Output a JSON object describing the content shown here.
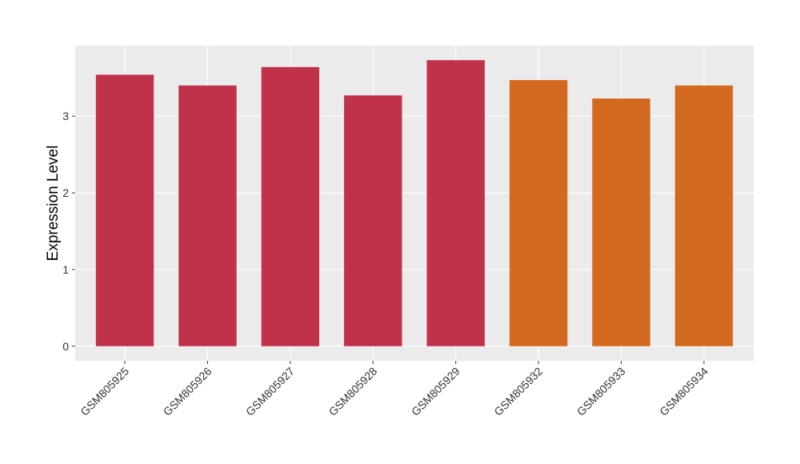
{
  "chart_data": {
    "type": "bar",
    "y_label": "Expression Level",
    "categories": [
      "GSM805925",
      "GSM805926",
      "GSM805927",
      "GSM805928",
      "GSM805929",
      "GSM805932",
      "GSM805933",
      "GSM805934"
    ],
    "values": [
      3.54,
      3.4,
      3.64,
      3.27,
      3.73,
      3.47,
      3.23,
      3.4
    ],
    "colors": [
      "#c0314a",
      "#c0314a",
      "#c0314a",
      "#c0314a",
      "#c0314a",
      "#d2691e",
      "#d2691e",
      "#d2691e"
    ],
    "ylim": [
      -0.19,
      3.92
    ],
    "yticks": [
      0,
      1,
      2,
      3
    ],
    "grid": true
  }
}
